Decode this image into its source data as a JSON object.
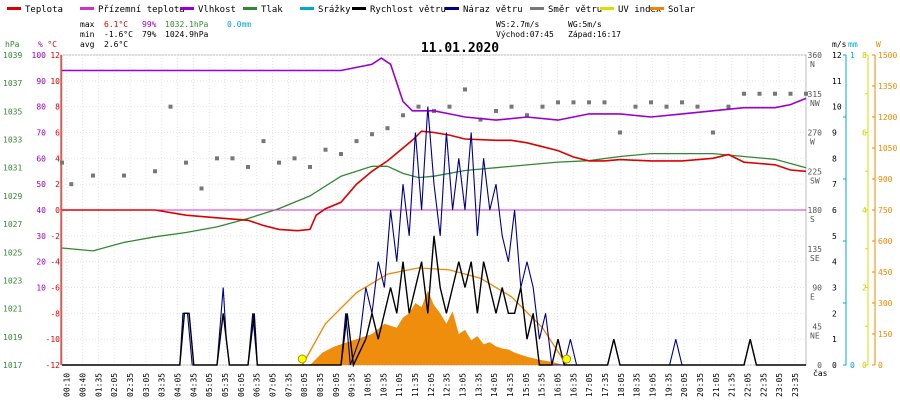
{
  "chart_data": {
    "type": "line",
    "title": "11.01.2020",
    "legend": [
      {
        "name": "Teplota",
        "color": "#dd0000"
      },
      {
        "name": "Přízemní teplota",
        "color": "#cc33cc"
      },
      {
        "name": "Vlhkost",
        "color": "#9900cc"
      },
      {
        "name": "Tlak",
        "color": "#338833"
      },
      {
        "name": "Srážky",
        "color": "#00aacc"
      },
      {
        "name": "Rychlost větru",
        "color": "#000000"
      },
      {
        "name": "Náraz větru",
        "color": "#000088"
      },
      {
        "name": "Směr větru",
        "color": "#777777"
      },
      {
        "name": "UV index",
        "color": "#dddd00"
      },
      {
        "name": "Solar",
        "color": "#ee8800"
      }
    ],
    "stats": {
      "max_label": "max",
      "min_label": "min",
      "avg_label": "avg",
      "max_temp": "6.1°C",
      "max_hum": "99%",
      "max_press": "1032.1hPa",
      "max_rain": "0.0mm",
      "min_temp": "-1.6°C",
      "min_hum": "79%",
      "min_press": "1024.9hPa",
      "avg_temp": "2.6°C",
      "ws": "WS:2.7m/s",
      "wg": "WG:5m/s",
      "sunrise": "Východ:07:45",
      "sunset": "Západ:16:17"
    },
    "axis_units": {
      "press": "hPa",
      "hum": "%",
      "temp": "°C",
      "wind": "m/s",
      "rain": "mm",
      "solar": "W",
      "time": "čas"
    },
    "press_ticks": [
      "1039",
      "1037",
      "1035",
      "1033",
      "1031",
      "1029",
      "1027",
      "1025",
      "1023",
      "1021",
      "1019",
      "1017"
    ],
    "hum_ticks": [
      "100",
      "90",
      "80",
      "70",
      "60",
      "50",
      "40",
      "30",
      "20",
      "10"
    ],
    "temp_ticks": [
      "12",
      "10",
      "8",
      "6",
      "4",
      "2",
      "0",
      "-2",
      "-4",
      "-6",
      "-8",
      "-10",
      "-12"
    ],
    "dir_ticks": [
      {
        "deg": "360",
        "dir": "N"
      },
      {
        "deg": "315",
        "dir": "NW"
      },
      {
        "deg": "270",
        "dir": "W"
      },
      {
        "deg": "225",
        "dir": "SW"
      },
      {
        "deg": "180",
        "dir": "S"
      },
      {
        "deg": "135",
        "dir": "SE"
      },
      {
        "deg": "90",
        "dir": "E"
      },
      {
        "deg": "45",
        "dir": "NE"
      },
      {
        "deg": "0",
        "dir": ""
      }
    ],
    "wind_ticks": [
      "12",
      "11",
      "10",
      "9",
      "8",
      "7",
      "6",
      "5",
      "4",
      "3",
      "2",
      "1",
      "0"
    ],
    "rain_ticks": [
      "1",
      "",
      "",
      "",
      "",
      "0"
    ],
    "uv_ticks": [
      "8",
      "",
      "6",
      "",
      "4",
      "",
      "2",
      "",
      "0"
    ],
    "solar_ticks": [
      "1500",
      "1350",
      "1200",
      "1050",
      "900",
      "750",
      "600",
      "450",
      "300",
      "150",
      "0"
    ],
    "time_ticks": [
      "00:10",
      "00:40",
      "01:35",
      "02:05",
      "02:35",
      "03:05",
      "03:35",
      "04:05",
      "04:35",
      "05:05",
      "05:35",
      "06:05",
      "06:35",
      "07:05",
      "07:35",
      "08:05",
      "08:35",
      "09:05",
      "09:35",
      "10:05",
      "10:35",
      "11:05",
      "11:35",
      "12:05",
      "12:35",
      "13:05",
      "13:35",
      "14:05",
      "14:35",
      "15:05",
      "15:35",
      "16:05",
      "16:35",
      "17:05",
      "17:35",
      "18:05",
      "18:35",
      "19:05",
      "19:35",
      "20:05",
      "20:35",
      "21:05",
      "21:35",
      "22:05",
      "22:35",
      "23:05",
      "23:35"
    ],
    "ylim": {
      "temp": [
        -12,
        12
      ],
      "hum": [
        0,
        100
      ],
      "press": [
        1017,
        1039
      ],
      "wind": [
        0,
        12
      ],
      "dir": [
        0,
        360
      ],
      "solar": [
        0,
        1500
      ]
    },
    "xlim_hours": [
      0,
      24
    ],
    "temperature": [
      [
        0,
        0
      ],
      [
        1,
        0
      ],
      [
        2,
        0
      ],
      [
        3,
        0
      ],
      [
        4,
        -0.4
      ],
      [
        5,
        -0.6
      ],
      [
        6,
        -0.8
      ],
      [
        6.5,
        -1.2
      ],
      [
        7,
        -1.5
      ],
      [
        7.6,
        -1.6
      ],
      [
        8,
        -1.5
      ],
      [
        8.2,
        -0.4
      ],
      [
        8.5,
        0.1
      ],
      [
        9,
        0.6
      ],
      [
        9.5,
        2
      ],
      [
        10,
        3
      ],
      [
        10.5,
        3.8
      ],
      [
        11,
        4.8
      ],
      [
        11.3,
        5.4
      ],
      [
        11.6,
        6.1
      ],
      [
        12,
        6
      ],
      [
        12.5,
        5.8
      ],
      [
        13,
        5.5
      ],
      [
        14,
        5.4
      ],
      [
        14.5,
        5.4
      ],
      [
        15,
        5.2
      ],
      [
        15.5,
        4.9
      ],
      [
        16,
        4.6
      ],
      [
        16.5,
        4.1
      ],
      [
        17,
        3.8
      ],
      [
        17.5,
        3.8
      ],
      [
        18,
        3.9
      ],
      [
        19,
        3.8
      ],
      [
        20,
        3.8
      ],
      [
        21,
        4.0
      ],
      [
        21.5,
        4.3
      ],
      [
        22,
        3.7
      ],
      [
        22.5,
        3.6
      ],
      [
        23,
        3.5
      ],
      [
        23.5,
        3.1
      ],
      [
        24,
        3.0
      ]
    ],
    "ground_temp": [
      [
        0,
        0
      ],
      [
        24,
        0
      ]
    ],
    "humidity": [
      [
        0,
        95
      ],
      [
        5,
        95
      ],
      [
        7,
        95
      ],
      [
        8,
        95
      ],
      [
        9,
        95
      ],
      [
        9.5,
        96
      ],
      [
        10,
        97
      ],
      [
        10.3,
        99
      ],
      [
        10.6,
        97
      ],
      [
        11,
        85
      ],
      [
        11.3,
        82
      ],
      [
        11.6,
        82
      ],
      [
        12,
        82
      ],
      [
        12.5,
        81
      ],
      [
        13,
        80
      ],
      [
        14,
        79
      ],
      [
        15,
        80
      ],
      [
        16,
        79
      ],
      [
        16.5,
        80
      ],
      [
        17,
        81
      ],
      [
        18,
        81
      ],
      [
        19,
        80
      ],
      [
        20,
        81
      ],
      [
        21,
        82
      ],
      [
        22,
        83
      ],
      [
        23,
        83
      ],
      [
        23.5,
        84
      ],
      [
        24,
        86
      ]
    ],
    "pressure": [
      [
        0,
        1025.3
      ],
      [
        1,
        1025.1
      ],
      [
        2,
        1025.7
      ],
      [
        3,
        1026.1
      ],
      [
        4,
        1026.4
      ],
      [
        5,
        1026.8
      ],
      [
        6,
        1027.4
      ],
      [
        7,
        1028.1
      ],
      [
        8,
        1029
      ],
      [
        9,
        1030.4
      ],
      [
        10,
        1031.1
      ],
      [
        10.5,
        1031.1
      ],
      [
        11,
        1030.6
      ],
      [
        11.5,
        1030.3
      ],
      [
        12,
        1030.4
      ],
      [
        13,
        1030.8
      ],
      [
        14,
        1031
      ],
      [
        15,
        1031.2
      ],
      [
        16,
        1031.4
      ],
      [
        17,
        1031.5
      ],
      [
        18,
        1031.8
      ],
      [
        19,
        1032.0
      ],
      [
        20,
        1032
      ],
      [
        21,
        1032
      ],
      [
        22,
        1031.8
      ],
      [
        23,
        1031.6
      ],
      [
        24,
        1031.0
      ]
    ],
    "wind_speed": [
      [
        0,
        0
      ],
      [
        3.8,
        0
      ],
      [
        3.95,
        2
      ],
      [
        4.1,
        2
      ],
      [
        4.25,
        0
      ],
      [
        5.0,
        0
      ],
      [
        5.2,
        2
      ],
      [
        5.4,
        0
      ],
      [
        6.0,
        0
      ],
      [
        6.2,
        2
      ],
      [
        6.3,
        0
      ],
      [
        9,
        0
      ],
      [
        9.2,
        2
      ],
      [
        9.4,
        0
      ],
      [
        9.8,
        1
      ],
      [
        10,
        2
      ],
      [
        10.2,
        1
      ],
      [
        10.6,
        3
      ],
      [
        10.8,
        2
      ],
      [
        11.0,
        4
      ],
      [
        11.2,
        2
      ],
      [
        11.4,
        3
      ],
      [
        11.6,
        4
      ],
      [
        11.8,
        2
      ],
      [
        12.0,
        5
      ],
      [
        12.2,
        3
      ],
      [
        12.4,
        2
      ],
      [
        12.6,
        3
      ],
      [
        12.8,
        4
      ],
      [
        13.0,
        3
      ],
      [
        13.2,
        4
      ],
      [
        13.4,
        2
      ],
      [
        13.6,
        4
      ],
      [
        13.8,
        3
      ],
      [
        14.0,
        2
      ],
      [
        14.2,
        3
      ],
      [
        14.4,
        2
      ],
      [
        14.6,
        2
      ],
      [
        14.8,
        3
      ],
      [
        15.0,
        1
      ],
      [
        15.2,
        2
      ],
      [
        15.4,
        0
      ],
      [
        15.8,
        0
      ],
      [
        16.0,
        1
      ],
      [
        16.2,
        0
      ],
      [
        17.6,
        0
      ],
      [
        17.8,
        1
      ],
      [
        18.0,
        0
      ],
      [
        22.0,
        0
      ],
      [
        22.2,
        1
      ],
      [
        22.4,
        0
      ],
      [
        24,
        0
      ]
    ],
    "wind_gust": [
      [
        0,
        0
      ],
      [
        3.8,
        0
      ],
      [
        3.9,
        2
      ],
      [
        4.05,
        2
      ],
      [
        4.2,
        0
      ],
      [
        5,
        0
      ],
      [
        5.2,
        3
      ],
      [
        5.3,
        1
      ],
      [
        5.4,
        0
      ],
      [
        6,
        0
      ],
      [
        6.15,
        2
      ],
      [
        6.3,
        0
      ],
      [
        9,
        0
      ],
      [
        9.15,
        2
      ],
      [
        9.3,
        0
      ],
      [
        9.6,
        1
      ],
      [
        9.8,
        3
      ],
      [
        10,
        2
      ],
      [
        10.2,
        4
      ],
      [
        10.4,
        3
      ],
      [
        10.6,
        6
      ],
      [
        10.8,
        4
      ],
      [
        11,
        7
      ],
      [
        11.2,
        5
      ],
      [
        11.4,
        9
      ],
      [
        11.6,
        6
      ],
      [
        11.8,
        10
      ],
      [
        12,
        7
      ],
      [
        12.2,
        5
      ],
      [
        12.4,
        9
      ],
      [
        12.6,
        6
      ],
      [
        12.8,
        8
      ],
      [
        13,
        6
      ],
      [
        13.2,
        9
      ],
      [
        13.4,
        5
      ],
      [
        13.6,
        8
      ],
      [
        13.8,
        6
      ],
      [
        14,
        7
      ],
      [
        14.2,
        5
      ],
      [
        14.4,
        4
      ],
      [
        14.6,
        6
      ],
      [
        14.8,
        3
      ],
      [
        15,
        4
      ],
      [
        15.2,
        3
      ],
      [
        15.4,
        1
      ],
      [
        15.6,
        2
      ],
      [
        15.8,
        0
      ],
      [
        16.2,
        0
      ],
      [
        16.4,
        1
      ],
      [
        16.6,
        0
      ],
      [
        17.6,
        0
      ],
      [
        17.8,
        1
      ],
      [
        18,
        0
      ],
      [
        19.6,
        0
      ],
      [
        19.8,
        1
      ],
      [
        20,
        0
      ],
      [
        22,
        0
      ],
      [
        22.2,
        1
      ],
      [
        22.4,
        0
      ],
      [
        24,
        0
      ]
    ],
    "wind_direction": [
      [
        0,
        235
      ],
      [
        0.3,
        210
      ],
      [
        1,
        220
      ],
      [
        2,
        220
      ],
      [
        3,
        225
      ],
      [
        3.5,
        300
      ],
      [
        4,
        235
      ],
      [
        4.5,
        205
      ],
      [
        5,
        240
      ],
      [
        5.5,
        240
      ],
      [
        6,
        230
      ],
      [
        6.5,
        260
      ],
      [
        7,
        235
      ],
      [
        7.5,
        240
      ],
      [
        8,
        230
      ],
      [
        8.5,
        250
      ],
      [
        9,
        245
      ],
      [
        9.5,
        260
      ],
      [
        10,
        268
      ],
      [
        10.5,
        275
      ],
      [
        11,
        290
      ],
      [
        11.5,
        300
      ],
      [
        12,
        295
      ],
      [
        12.5,
        300
      ],
      [
        13,
        320
      ],
      [
        13.5,
        285
      ],
      [
        14,
        295
      ],
      [
        14.5,
        300
      ],
      [
        15,
        290
      ],
      [
        15.5,
        300
      ],
      [
        16,
        305
      ],
      [
        16.5,
        305
      ],
      [
        17,
        305
      ],
      [
        17.5,
        305
      ],
      [
        18,
        270
      ],
      [
        18.5,
        300
      ],
      [
        19,
        305
      ],
      [
        19.5,
        300
      ],
      [
        20,
        305
      ],
      [
        20.5,
        300
      ],
      [
        21,
        270
      ],
      [
        21.5,
        300
      ],
      [
        22,
        315
      ],
      [
        22.5,
        315
      ],
      [
        23,
        315
      ],
      [
        23.5,
        315
      ],
      [
        24,
        315
      ]
    ],
    "solar": [
      [
        0,
        0
      ],
      [
        8,
        0
      ],
      [
        8.4,
        60
      ],
      [
        8.8,
        90
      ],
      [
        9.2,
        110
      ],
      [
        9.6,
        130
      ],
      [
        10,
        150
      ],
      [
        10.4,
        200
      ],
      [
        10.8,
        180
      ],
      [
        11,
        230
      ],
      [
        11.2,
        250
      ],
      [
        11.4,
        300
      ],
      [
        11.6,
        280
      ],
      [
        11.8,
        360
      ],
      [
        12,
        290
      ],
      [
        12.2,
        250
      ],
      [
        12.4,
        200
      ],
      [
        12.6,
        260
      ],
      [
        12.8,
        150
      ],
      [
        13,
        170
      ],
      [
        13.2,
        120
      ],
      [
        13.4,
        140
      ],
      [
        13.6,
        100
      ],
      [
        13.8,
        110
      ],
      [
        14,
        90
      ],
      [
        14.2,
        80
      ],
      [
        14.4,
        75
      ],
      [
        14.6,
        60
      ],
      [
        14.8,
        50
      ],
      [
        15,
        40
      ],
      [
        15.4,
        25
      ],
      [
        15.8,
        15
      ],
      [
        16.2,
        0
      ],
      [
        24,
        0
      ]
    ],
    "solar_max": [
      [
        7.75,
        0
      ],
      [
        8.5,
        200
      ],
      [
        9.5,
        350
      ],
      [
        10.5,
        440
      ],
      [
        11.5,
        470
      ],
      [
        12.5,
        460
      ],
      [
        13.5,
        420
      ],
      [
        14.5,
        330
      ],
      [
        15.5,
        180
      ],
      [
        16.28,
        0
      ]
    ],
    "sun_markers": [
      7.75,
      16.28
    ]
  }
}
